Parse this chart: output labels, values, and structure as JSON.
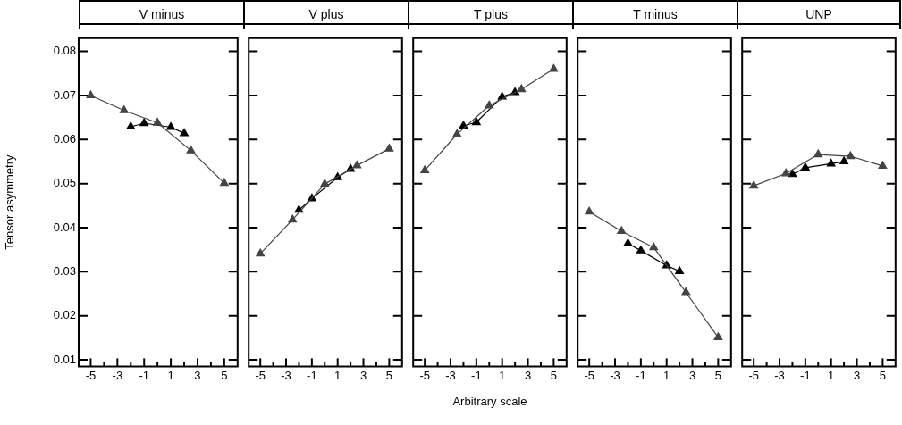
{
  "chart_data": [
    {
      "type": "line",
      "title": "V minus",
      "ylabel": "Tensor asymmetry",
      "xlim": [
        -5.9,
        6
      ],
      "ylim": [
        0.0085,
        0.083
      ],
      "xticks": [
        -5,
        {
          "value": -4,
          "label": null
        },
        -3,
        {
          "value": -2,
          "label": null
        },
        -1,
        {
          "value": 0,
          "label": null
        },
        1,
        {
          "value": 2,
          "label": null
        },
        3,
        {
          "value": 4,
          "label": null
        },
        5
      ],
      "yticks": [
        0.01,
        0.02,
        0.03,
        0.04,
        0.05,
        0.06,
        0.07,
        0.08
      ],
      "grid": false,
      "legend": false,
      "marker": "triangle",
      "line_style": "solid",
      "series": [
        {
          "color": "#444444",
          "x": [
            -5,
            -2.5,
            0,
            2.5,
            5
          ],
          "values": [
            0.07,
            0.0666,
            0.0638,
            0.0575,
            0.0501
          ]
        },
        {
          "color": "#000000",
          "x": [
            -2,
            -1,
            1,
            2
          ],
          "values": [
            0.0629,
            0.0637,
            0.0628,
            0.0614
          ]
        }
      ]
    },
    {
      "type": "line",
      "title": "V plus",
      "xlim": [
        -5.9,
        6
      ],
      "ylim": [
        0.0085,
        0.083
      ],
      "xticks": [
        -5,
        {
          "value": -4,
          "label": null
        },
        -3,
        {
          "value": -2,
          "label": null
        },
        -1,
        {
          "value": 0,
          "label": null
        },
        1,
        {
          "value": 2,
          "label": null
        },
        3,
        {
          "value": 4,
          "label": null
        },
        5
      ],
      "yticks": [
        0.01,
        0.02,
        0.03,
        0.04,
        0.05,
        0.06,
        0.07,
        0.08
      ],
      "grid": false,
      "legend": false,
      "tick_labels": "x",
      "marker": "triangle",
      "line_style": "solid",
      "series": [
        {
          "color": "#444444",
          "x": [
            -5,
            -2.5,
            0,
            2.5,
            5
          ],
          "values": [
            0.0341,
            0.0418,
            0.0499,
            0.0541,
            0.0579
          ]
        },
        {
          "color": "#000000",
          "x": [
            -2,
            -1,
            1,
            2
          ],
          "values": [
            0.044,
            0.0466,
            0.0514,
            0.0533
          ]
        }
      ]
    },
    {
      "type": "line",
      "title": "T plus",
      "xlabel": "Arbitrary scale",
      "xlim": [
        -5.9,
        6
      ],
      "ylim": [
        0.0085,
        0.083
      ],
      "xticks": [
        -5,
        {
          "value": -4,
          "label": null
        },
        -3,
        {
          "value": -2,
          "label": null
        },
        -1,
        {
          "value": 0,
          "label": null
        },
        1,
        {
          "value": 2,
          "label": null
        },
        3,
        {
          "value": 4,
          "label": null
        },
        5
      ],
      "yticks": [
        0.01,
        0.02,
        0.03,
        0.04,
        0.05,
        0.06,
        0.07,
        0.08
      ],
      "grid": false,
      "legend": false,
      "tick_labels": "x",
      "marker": "triangle",
      "line_style": "solid",
      "series": [
        {
          "color": "#444444",
          "x": [
            -5,
            -2.5,
            0,
            2.5,
            5
          ],
          "values": [
            0.053,
            0.0612,
            0.0677,
            0.0714,
            0.076
          ]
        },
        {
          "color": "#000000",
          "x": [
            -2,
            -1,
            1,
            2
          ],
          "values": [
            0.0631,
            0.0639,
            0.0697,
            0.0707
          ]
        }
      ]
    },
    {
      "type": "line",
      "title": "T minus",
      "xlim": [
        -5.9,
        6
      ],
      "ylim": [
        0.0085,
        0.083
      ],
      "xticks": [
        -5,
        {
          "value": -4,
          "label": null
        },
        -3,
        {
          "value": -2,
          "label": null
        },
        -1,
        {
          "value": 0,
          "label": null
        },
        1,
        {
          "value": 2,
          "label": null
        },
        3,
        {
          "value": 4,
          "label": null
        },
        5
      ],
      "yticks": [
        0.01,
        0.02,
        0.03,
        0.04,
        0.05,
        0.06,
        0.07,
        0.08
      ],
      "grid": false,
      "legend": false,
      "tick_labels": "x",
      "marker": "triangle",
      "line_style": "solid",
      "series": [
        {
          "color": "#444444",
          "x": [
            -5,
            -2.5,
            0,
            2.5,
            5
          ],
          "values": [
            0.0436,
            0.0392,
            0.0355,
            0.0253,
            0.0151
          ]
        },
        {
          "color": "#000000",
          "x": [
            -2,
            -1,
            1,
            2
          ],
          "values": [
            0.0364,
            0.0348,
            0.0314,
            0.0301
          ]
        }
      ]
    },
    {
      "type": "line",
      "title": "UNP",
      "xlim": [
        -5.9,
        6
      ],
      "ylim": [
        0.0085,
        0.083
      ],
      "xticks": [
        -5,
        {
          "value": -4,
          "label": null
        },
        -3,
        {
          "value": -2,
          "label": null
        },
        -1,
        {
          "value": 0,
          "label": null
        },
        1,
        {
          "value": 2,
          "label": null
        },
        3,
        {
          "value": 4,
          "label": null
        },
        5
      ],
      "yticks": [
        0.01,
        0.02,
        0.03,
        0.04,
        0.05,
        0.06,
        0.07,
        0.08
      ],
      "grid": false,
      "legend": false,
      "tick_labels": "x",
      "marker": "triangle",
      "line_style": "solid",
      "series": [
        {
          "color": "#444444",
          "x": [
            -5,
            -2.5,
            0,
            2.5,
            5
          ],
          "values": [
            0.0495,
            0.0523,
            0.0566,
            0.0562,
            0.054
          ]
        },
        {
          "color": "#000000",
          "x": [
            -2,
            -1,
            1,
            2
          ],
          "values": [
            0.0521,
            0.0536,
            0.0545,
            0.055
          ]
        }
      ]
    }
  ]
}
